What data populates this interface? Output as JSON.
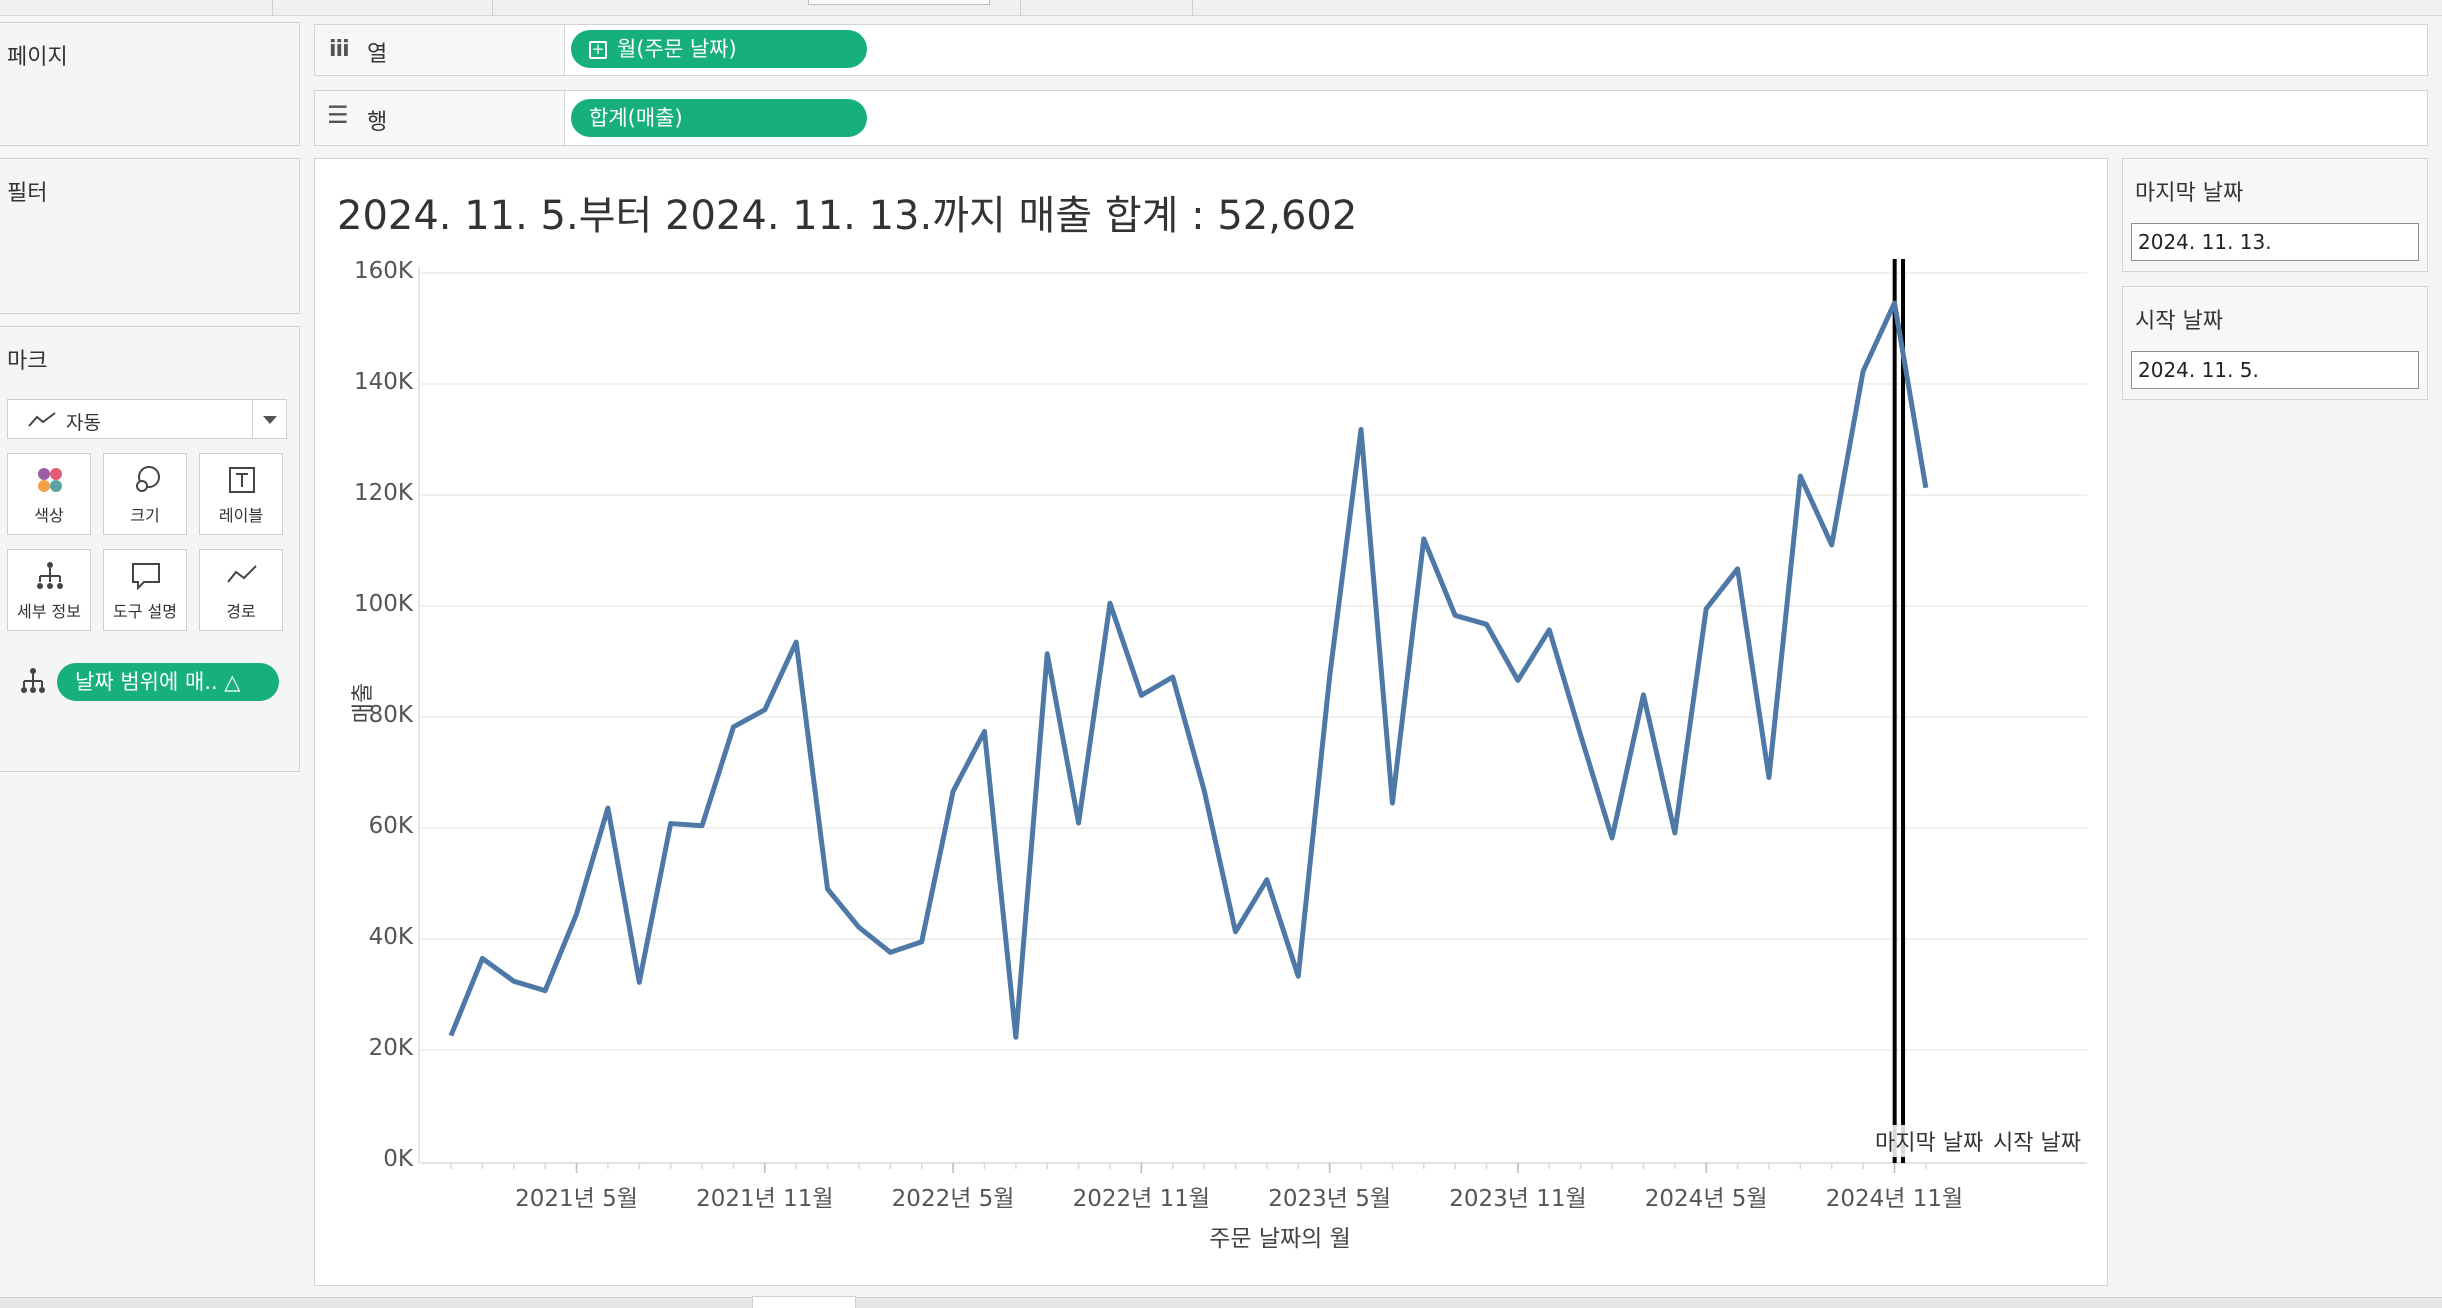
{
  "shelves": {
    "pages_title": "페이지",
    "columns_label": "열",
    "rows_label": "행",
    "columns_pill": "월(주문 날짜)",
    "rows_pill": "합계(매출)"
  },
  "filters": {
    "title": "필터"
  },
  "marks": {
    "title": "마크",
    "type_select": "자동",
    "buttons": {
      "color": "색상",
      "size": "크기",
      "label": "레이블",
      "detail": "세부 정보",
      "tooltip": "도구 설명",
      "path": "경로"
    },
    "detail_pill": "날짜 범위에 매.. △"
  },
  "parameters": {
    "end_title": "마지막 날짜",
    "end_value": "2024. 11. 13.",
    "start_title": "시작 날짜",
    "start_value": "2024. 11. 5."
  },
  "chart_data": {
    "type": "line",
    "title": "2024. 11. 5.부터 2024. 11. 13.까지 매출 합계 : 52,602",
    "xlabel": "주문 날짜의 월",
    "ylabel": "매출",
    "y_ticks": [
      "160K",
      "140K",
      "120K",
      "100K",
      "80K",
      "60K",
      "40K",
      "20K",
      "0K"
    ],
    "ylim": [
      0,
      160000
    ],
    "x_ticks": [
      "2021년 5월",
      "2021년 11월",
      "2022년 5월",
      "2022년 11월",
      "2023년 5월",
      "2023년 11월",
      "2024년 5월",
      "2024년 11월"
    ],
    "line_color": "#4e79a7",
    "grid": true,
    "series": [
      {
        "x": [
          "2021-01",
          "2021-02",
          "2021-03",
          "2021-04",
          "2021-05",
          "2021-06",
          "2021-07",
          "2021-08",
          "2021-09",
          "2021-10",
          "2021-11",
          "2021-12",
          "2022-01",
          "2022-02",
          "2022-03",
          "2022-04",
          "2022-05",
          "2022-06",
          "2022-07",
          "2022-08",
          "2022-09",
          "2022-10",
          "2022-11",
          "2022-12",
          "2023-01",
          "2023-02",
          "2023-03",
          "2023-04",
          "2023-05",
          "2023-06",
          "2023-07",
          "2023-08",
          "2023-09",
          "2023-10",
          "2023-11",
          "2023-12",
          "2024-01",
          "2024-02",
          "2024-03",
          "2024-04",
          "2024-05",
          "2024-06",
          "2024-07",
          "2024-08",
          "2024-09",
          "2024-10",
          "2024-11",
          "2024-12"
        ],
        "values": [
          22600,
          36500,
          32400,
          30700,
          44500,
          63600,
          32200,
          60800,
          60400,
          78200,
          81300,
          93500,
          49000,
          42100,
          37600,
          39500,
          66600,
          77400,
          22300,
          91400,
          60900,
          100500,
          83900,
          87200,
          66800,
          41300,
          50700,
          33300,
          87300,
          131800,
          64500,
          112100,
          98300,
          96700,
          86600,
          95700,
          76700,
          58200,
          84000,
          59100,
          99500,
          106700,
          69100,
          123400,
          111000,
          142300,
          154600,
          121300
        ]
      }
    ],
    "reference_lines": [
      {
        "label": "마지막 날짜",
        "date": "2024. 11. 13."
      },
      {
        "label": "시작 날짜",
        "date": "2024. 11. 5."
      }
    ]
  }
}
